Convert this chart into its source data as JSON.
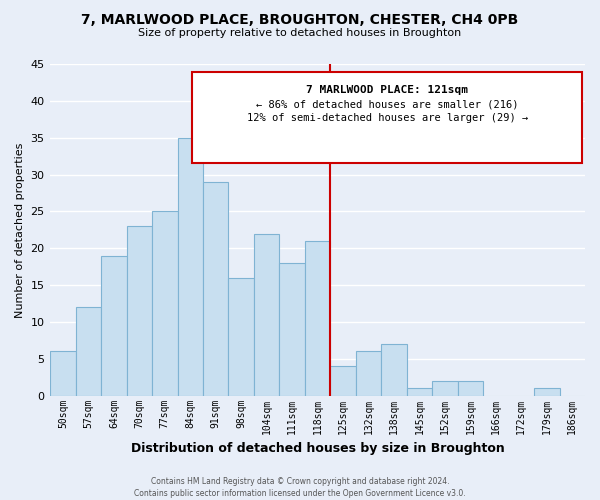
{
  "title": "7, MARLWOOD PLACE, BROUGHTON, CHESTER, CH4 0PB",
  "subtitle": "Size of property relative to detached houses in Broughton",
  "xlabel": "Distribution of detached houses by size in Broughton",
  "ylabel": "Number of detached properties",
  "bar_labels": [
    "50sqm",
    "57sqm",
    "64sqm",
    "70sqm",
    "77sqm",
    "84sqm",
    "91sqm",
    "98sqm",
    "104sqm",
    "111sqm",
    "118sqm",
    "125sqm",
    "132sqm",
    "138sqm",
    "145sqm",
    "152sqm",
    "159sqm",
    "166sqm",
    "172sqm",
    "179sqm",
    "186sqm"
  ],
  "bar_values": [
    6,
    12,
    19,
    23,
    25,
    35,
    29,
    16,
    22,
    18,
    21,
    4,
    6,
    7,
    1,
    2,
    2,
    0,
    0,
    1,
    0
  ],
  "bar_color": "#c8dff0",
  "bar_edge_color": "#7fb3d3",
  "background_color": "#e8eef8",
  "grid_color": "#ffffff",
  "vline_x": 10.5,
  "vline_color": "#cc0000",
  "ylim": [
    0,
    45
  ],
  "yticks": [
    0,
    5,
    10,
    15,
    20,
    25,
    30,
    35,
    40,
    45
  ],
  "annotation_title": "7 MARLWOOD PLACE: 121sqm",
  "annotation_line1": "← 86% of detached houses are smaller (216)",
  "annotation_line2": "12% of semi-detached houses are larger (29) →",
  "footer_line1": "Contains HM Land Registry data © Crown copyright and database right 2024.",
  "footer_line2": "Contains public sector information licensed under the Open Government Licence v3.0."
}
